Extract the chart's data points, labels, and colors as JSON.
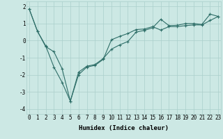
{
  "line1_x": [
    0,
    1,
    2,
    3,
    4,
    5,
    6,
    7,
    8,
    9,
    10,
    11,
    12,
    13,
    14,
    15,
    16,
    17,
    18,
    19,
    20,
    21,
    22,
    23
  ],
  "line1_y": [
    1.85,
    0.55,
    -0.35,
    -0.65,
    -1.65,
    -3.55,
    -1.85,
    -1.5,
    -1.4,
    -1.05,
    -0.5,
    -0.25,
    -0.05,
    0.5,
    0.6,
    0.75,
    1.25,
    0.88,
    0.9,
    1.0,
    1.0,
    0.95,
    1.55,
    1.42
  ],
  "line2_x": [
    0,
    1,
    2,
    3,
    4,
    5,
    6,
    7,
    8,
    9,
    10,
    11,
    12,
    13,
    14,
    15,
    16,
    17,
    18,
    19,
    20,
    21,
    22,
    23
  ],
  "line2_y": [
    1.85,
    0.55,
    -0.3,
    -1.55,
    -2.45,
    -3.55,
    -2.0,
    -1.55,
    -1.45,
    -1.1,
    0.05,
    0.25,
    0.42,
    0.65,
    0.68,
    0.82,
    0.62,
    0.82,
    0.82,
    0.88,
    0.92,
    0.92,
    1.18,
    1.42
  ],
  "line_color": "#2e6e68",
  "bg_color": "#cce8e4",
  "grid_color": "#aacfcb",
  "xlabel": "Humidex (Indice chaleur)",
  "ylim": [
    -4.3,
    2.3
  ],
  "xlim": [
    -0.3,
    23.3
  ],
  "yticks": [
    -4,
    -3,
    -2,
    -1,
    0,
    1,
    2
  ],
  "xticks": [
    0,
    1,
    2,
    3,
    4,
    5,
    6,
    7,
    8,
    9,
    10,
    11,
    12,
    13,
    14,
    15,
    16,
    17,
    18,
    19,
    20,
    21,
    22,
    23
  ],
  "xlabel_fontsize": 6.5,
  "tick_fontsize": 5.5
}
